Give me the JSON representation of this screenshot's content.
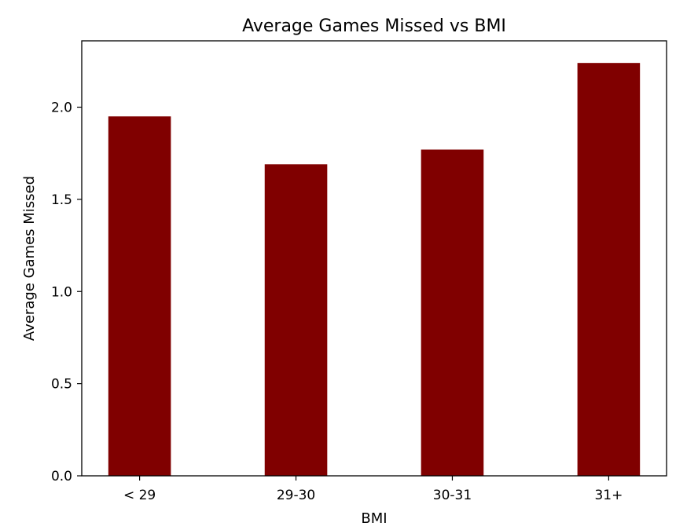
{
  "chart_data": {
    "type": "bar",
    "title": "Average Games Missed vs BMI",
    "xlabel": "BMI",
    "ylabel": "Average Games Missed",
    "categories": [
      "< 29",
      "29-30",
      "30-31",
      "31+"
    ],
    "values": [
      1.95,
      1.69,
      1.77,
      2.24
    ],
    "ylim": [
      0,
      2.36
    ],
    "yticks": [
      0.0,
      0.5,
      1.0,
      1.5,
      2.0
    ],
    "ytick_labels": [
      "0.0",
      "0.5",
      "1.0",
      "1.5",
      "2.0"
    ],
    "bar_color": "#800000",
    "grid": false,
    "legend": "none"
  }
}
